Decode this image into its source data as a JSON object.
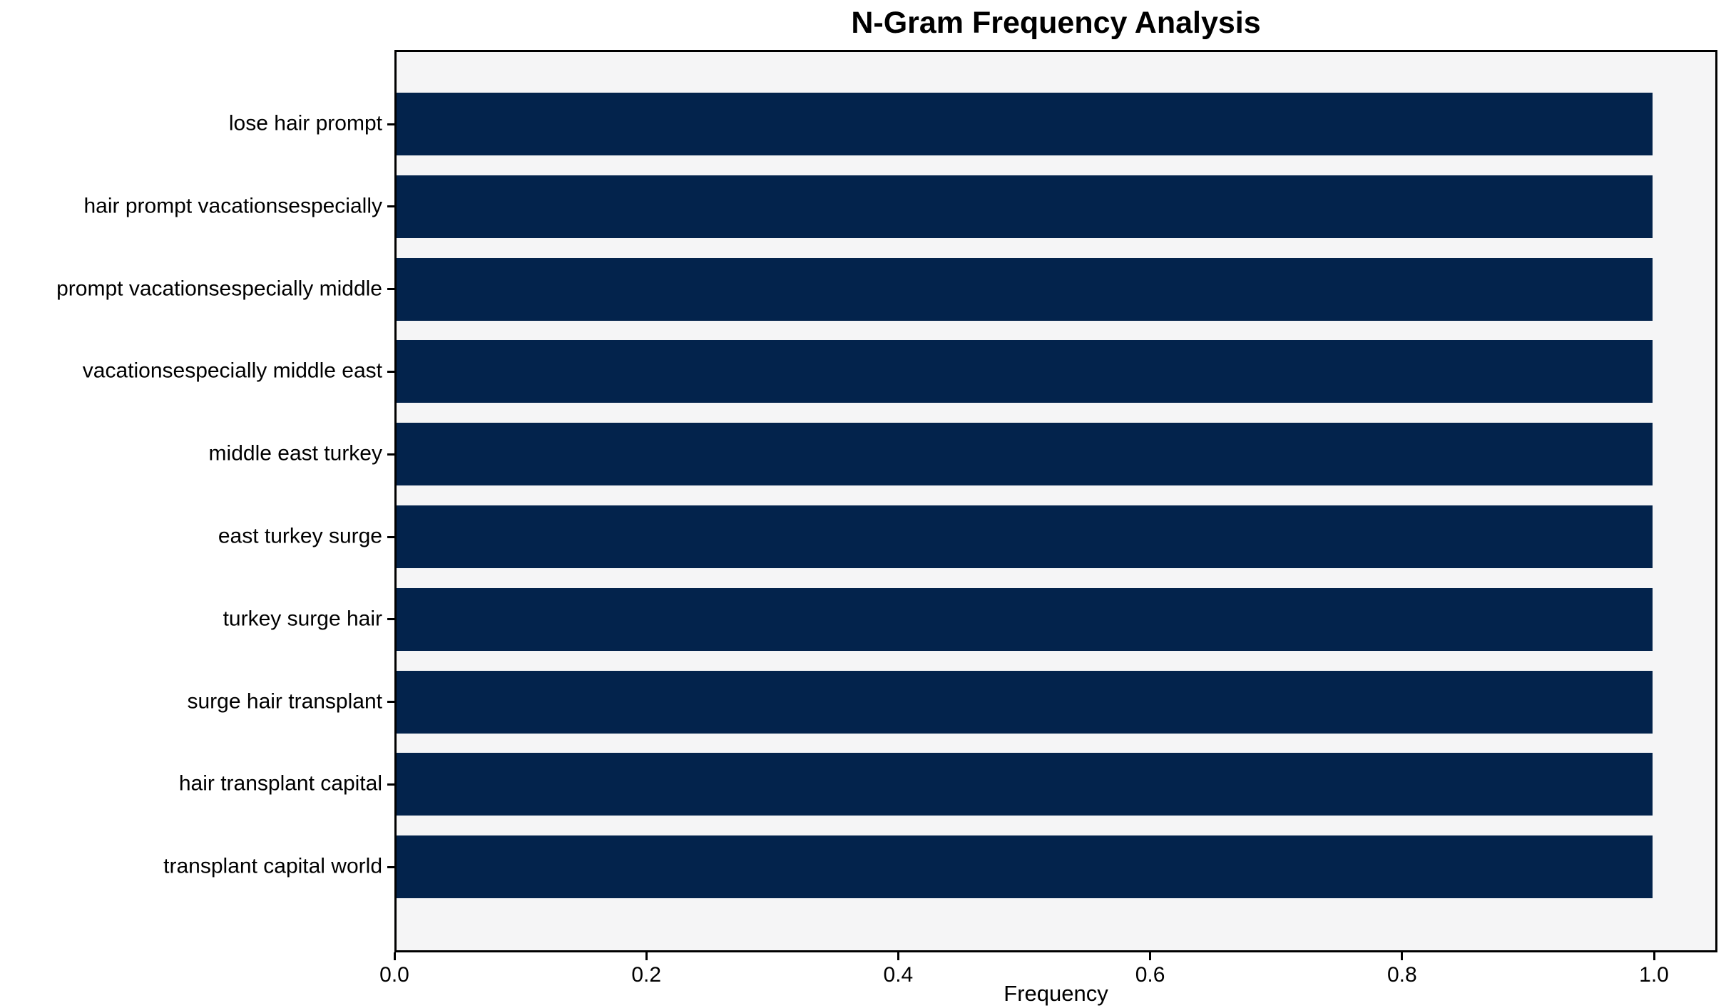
{
  "chart_data": {
    "type": "bar",
    "orientation": "horizontal",
    "title": "N-Gram Frequency Analysis",
    "xlabel": "Frequency",
    "ylabel": "",
    "categories": [
      "lose hair prompt",
      "hair prompt vacationsespecially",
      "prompt vacationsespecially middle",
      "vacationsespecially middle east",
      "middle east turkey",
      "east turkey surge",
      "turkey surge hair",
      "surge hair transplant",
      "hair transplant capital",
      "transplant capital world"
    ],
    "values": [
      1.0,
      1.0,
      1.0,
      1.0,
      1.0,
      1.0,
      1.0,
      1.0,
      1.0,
      1.0
    ],
    "xlim": [
      0,
      1.05
    ],
    "xticks": [
      "0.0",
      "0.2",
      "0.4",
      "0.6",
      "0.8",
      "1.0"
    ],
    "xtick_values": [
      0.0,
      0.2,
      0.4,
      0.6,
      0.8,
      1.0
    ],
    "grid": false,
    "legend": false,
    "colors": {
      "bar": "#03234c",
      "plot_background": "#f5f5f6",
      "figure_background": "#ffffff",
      "axis": "#000000",
      "text": "#000000"
    }
  }
}
